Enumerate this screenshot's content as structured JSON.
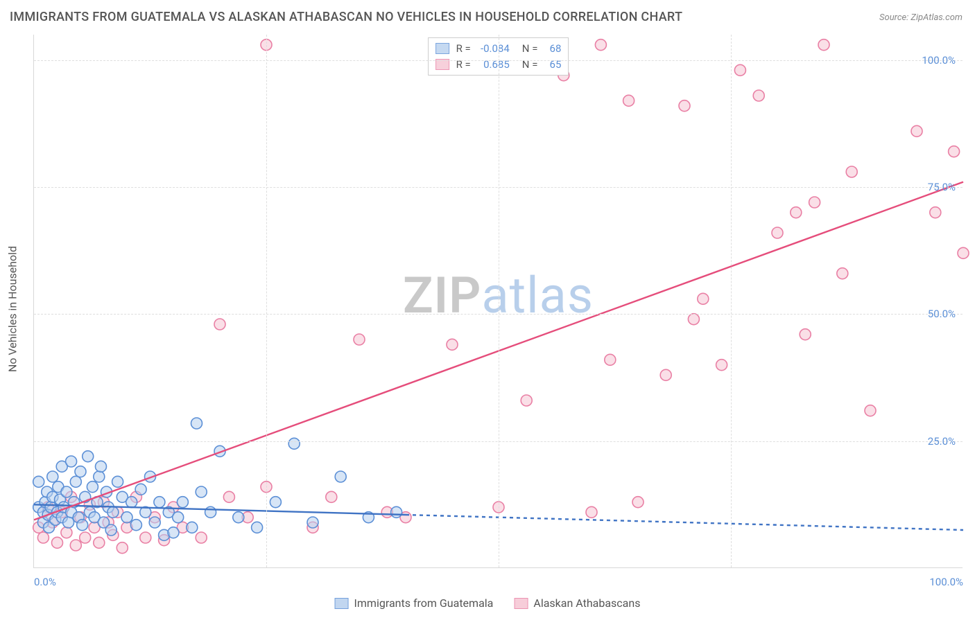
{
  "title": "IMMIGRANTS FROM GUATEMALA VS ALASKAN ATHABASCAN NO VEHICLES IN HOUSEHOLD CORRELATION CHART",
  "source": "Source: ZipAtlas.com",
  "ylabel": "No Vehicles in Household",
  "watermark_bold": "ZIP",
  "watermark_rest": "atlas",
  "chart": {
    "type": "scatter",
    "xlim": [
      0,
      100
    ],
    "ylim": [
      0,
      105
    ],
    "x_ticks": [
      0,
      25,
      50,
      75,
      100
    ],
    "x_tick_labels": [
      "0.0%",
      "",
      "",
      "",
      "100.0%"
    ],
    "y_ticks": [
      25,
      50,
      75,
      100
    ],
    "y_tick_labels": [
      "25.0%",
      "50.0%",
      "75.0%",
      "100.0%"
    ],
    "grid_color": "#dedede",
    "background_color": "#ffffff",
    "marker_radius": 8,
    "marker_stroke_width": 1.6,
    "series": [
      {
        "name": "Immigrants from Guatemala",
        "fill": "#b7d0ee",
        "stroke": "#5b8fd6",
        "fill_opacity": 0.55,
        "R_label": "R =",
        "R": "-0.084",
        "N_label": "N =",
        "N": "68",
        "trend": {
          "x1": 0,
          "y1": 12.5,
          "x2": 40,
          "y2": 10.5,
          "extend_x": 100,
          "extend_y": 7.5,
          "color": "#3f73c4",
          "width": 2.4,
          "dash": "5,5"
        },
        "points": [
          [
            0.5,
            12
          ],
          [
            0.5,
            17
          ],
          [
            1,
            11
          ],
          [
            1,
            9
          ],
          [
            1.2,
            13
          ],
          [
            1.4,
            15
          ],
          [
            1.5,
            10.5
          ],
          [
            1.6,
            8
          ],
          [
            1.8,
            12
          ],
          [
            2,
            14
          ],
          [
            2,
            18
          ],
          [
            2.3,
            9.5
          ],
          [
            2.5,
            11
          ],
          [
            2.6,
            16
          ],
          [
            2.8,
            13.5
          ],
          [
            3,
            10
          ],
          [
            3,
            20
          ],
          [
            3.2,
            12
          ],
          [
            3.5,
            15
          ],
          [
            3.7,
            9
          ],
          [
            4,
            21
          ],
          [
            4,
            11
          ],
          [
            4.3,
            13
          ],
          [
            4.5,
            17
          ],
          [
            4.8,
            10
          ],
          [
            5,
            19
          ],
          [
            5.2,
            8.5
          ],
          [
            5.5,
            14
          ],
          [
            5.8,
            22
          ],
          [
            6,
            11
          ],
          [
            6.3,
            16
          ],
          [
            6.5,
            10
          ],
          [
            6.8,
            13
          ],
          [
            7,
            18
          ],
          [
            7.2,
            20
          ],
          [
            7.5,
            9
          ],
          [
            7.8,
            15
          ],
          [
            8,
            12
          ],
          [
            8.3,
            7.5
          ],
          [
            8.5,
            11
          ],
          [
            9,
            17
          ],
          [
            9.5,
            14
          ],
          [
            10,
            10
          ],
          [
            10.5,
            13
          ],
          [
            11,
            8.5
          ],
          [
            11.5,
            15.5
          ],
          [
            12,
            11
          ],
          [
            12.5,
            18
          ],
          [
            13,
            9
          ],
          [
            13.5,
            13
          ],
          [
            14,
            6.5
          ],
          [
            14.5,
            11
          ],
          [
            15,
            7
          ],
          [
            15.5,
            10
          ],
          [
            16,
            13
          ],
          [
            17,
            8
          ],
          [
            17.5,
            28.5
          ],
          [
            18,
            15
          ],
          [
            19,
            11
          ],
          [
            20,
            23
          ],
          [
            22,
            10
          ],
          [
            24,
            8
          ],
          [
            26,
            13
          ],
          [
            28,
            24.5
          ],
          [
            30,
            9
          ],
          [
            33,
            18
          ],
          [
            36,
            10
          ],
          [
            39,
            11
          ]
        ]
      },
      {
        "name": "Alaskan Athabascans",
        "fill": "#f6c5d3",
        "stroke": "#e97fa4",
        "fill_opacity": 0.55,
        "R_label": "R =",
        "R": "0.685",
        "N_label": "N =",
        "N": "65",
        "trend": {
          "x1": 0,
          "y1": 9.5,
          "x2": 100,
          "y2": 76,
          "extend_x": 100,
          "extend_y": 76,
          "color": "#e54d7b",
          "width": 2.4,
          "dash": ""
        },
        "points": [
          [
            0.5,
            8
          ],
          [
            1,
            6
          ],
          [
            1.5,
            12
          ],
          [
            2,
            9
          ],
          [
            2.5,
            5
          ],
          [
            3,
            11
          ],
          [
            3.5,
            7
          ],
          [
            4,
            14
          ],
          [
            4.5,
            4.5
          ],
          [
            5,
            10
          ],
          [
            5.5,
            6
          ],
          [
            6,
            12.5
          ],
          [
            6.5,
            8
          ],
          [
            7,
            5
          ],
          [
            7.5,
            13
          ],
          [
            8,
            9
          ],
          [
            8.5,
            6.5
          ],
          [
            9,
            11
          ],
          [
            9.5,
            4
          ],
          [
            10,
            8
          ],
          [
            11,
            14
          ],
          [
            12,
            6
          ],
          [
            13,
            10
          ],
          [
            14,
            5.5
          ],
          [
            15,
            12
          ],
          [
            16,
            8
          ],
          [
            18,
            6
          ],
          [
            20,
            48
          ],
          [
            21,
            14
          ],
          [
            23,
            10
          ],
          [
            25,
            16
          ],
          [
            25,
            103
          ],
          [
            30,
            8
          ],
          [
            32,
            14
          ],
          [
            35,
            45
          ],
          [
            38,
            11
          ],
          [
            40,
            10
          ],
          [
            45,
            44
          ],
          [
            50,
            12
          ],
          [
            53,
            33
          ],
          [
            57,
            97
          ],
          [
            60,
            11
          ],
          [
            61,
            103
          ],
          [
            62,
            41
          ],
          [
            64,
            92
          ],
          [
            65,
            13
          ],
          [
            68,
            38
          ],
          [
            70,
            91
          ],
          [
            71,
            49
          ],
          [
            72,
            53
          ],
          [
            74,
            40
          ],
          [
            76,
            98
          ],
          [
            78,
            93
          ],
          [
            80,
            66
          ],
          [
            82,
            70
          ],
          [
            83,
            46
          ],
          [
            84,
            72
          ],
          [
            85,
            103
          ],
          [
            87,
            58
          ],
          [
            88,
            78
          ],
          [
            90,
            31
          ],
          [
            95,
            86
          ],
          [
            97,
            70
          ],
          [
            99,
            82
          ],
          [
            100,
            62
          ]
        ]
      }
    ]
  },
  "legend_bottom": [
    {
      "label": "Immigrants from Guatemala",
      "fill": "#b7d0ee",
      "stroke": "#5b8fd6"
    },
    {
      "label": "Alaskan Athabascans",
      "fill": "#f6c5d3",
      "stroke": "#e97fa4"
    }
  ]
}
